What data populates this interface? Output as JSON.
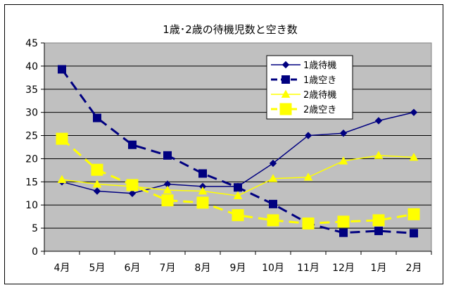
{
  "chart_data": {
    "type": "line",
    "title": "1歳･2歳の待機児数と空き数",
    "xlabel": "",
    "ylabel": "",
    "categories": [
      "4月",
      "5月",
      "6月",
      "7月",
      "8月",
      "9月",
      "10月",
      "11月",
      "12月",
      "1月",
      "2月"
    ],
    "ylim": [
      0,
      45
    ],
    "yticks": [
      0,
      5,
      10,
      15,
      20,
      25,
      30,
      35,
      40,
      45
    ],
    "grid": true,
    "legend_position": "top-right",
    "plot_background": "#c0c0c0",
    "series": [
      {
        "name": "1歳待機",
        "color": "#000080",
        "style": "solid",
        "marker": "diamond",
        "values": [
          15,
          13,
          12.5,
          14.5,
          14,
          14,
          19,
          25,
          25.5,
          28.2,
          30
        ]
      },
      {
        "name": "1歳空き",
        "color": "#000080",
        "style": "dashed",
        "marker": "square",
        "values": [
          39.3,
          28.8,
          23,
          20.7,
          16.8,
          13.8,
          10.2,
          6,
          4,
          4.4,
          3.9
        ]
      },
      {
        "name": "2歳待機",
        "color": "#ffff00",
        "style": "solid",
        "marker": "triangle",
        "values": [
          15.5,
          14.5,
          14,
          13.2,
          13,
          12,
          15.7,
          16,
          19.5,
          20.7,
          20.3
        ]
      },
      {
        "name": "2歳空き",
        "color": "#ffff00",
        "style": "dashed",
        "marker": "square",
        "values": [
          24.3,
          17.6,
          14.3,
          11,
          10.5,
          7.8,
          6.7,
          6,
          6.4,
          6.7,
          8
        ]
      }
    ]
  }
}
